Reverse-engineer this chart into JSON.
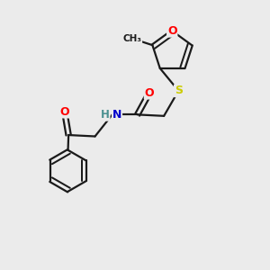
{
  "background_color": "#ebebeb",
  "bond_color": "#1a1a1a",
  "atom_colors": {
    "O": "#ff0000",
    "N": "#0000cc",
    "S": "#cccc00",
    "C": "#1a1a1a",
    "H": "#4a9090"
  },
  "figsize": [
    3.0,
    3.0
  ],
  "dpi": 100,
  "xlim": [
    0,
    10
  ],
  "ylim": [
    0,
    10
  ]
}
